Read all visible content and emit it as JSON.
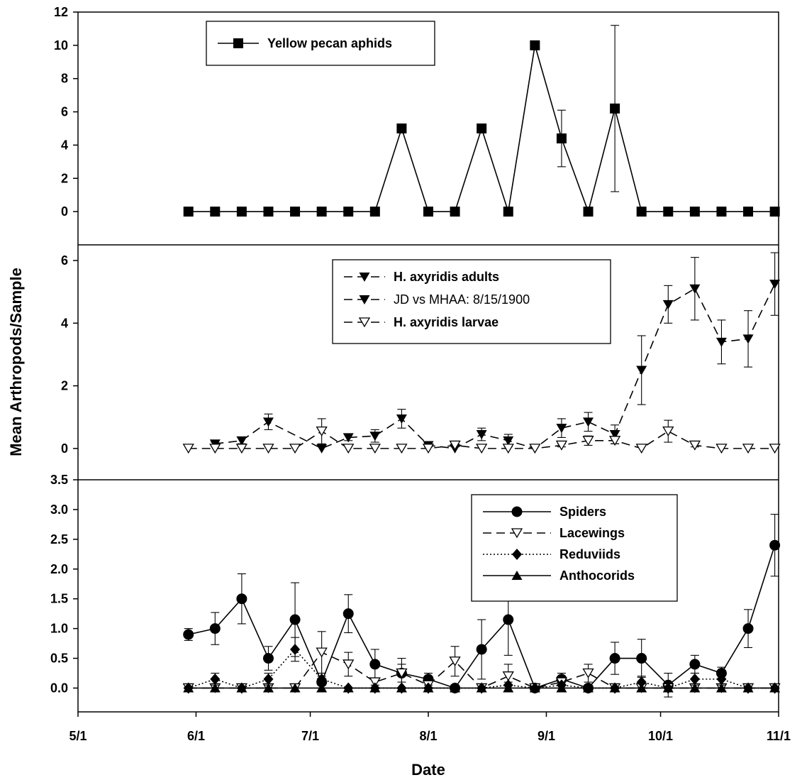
{
  "figure": {
    "ylabel": "Mean Arthropods/Sample",
    "xlabel": "Date",
    "x_ticks": [
      "5/1",
      "6/1",
      "7/1",
      "8/1",
      "9/1",
      "10/1",
      "11/1"
    ]
  },
  "chart_data": [
    {
      "type": "line",
      "panel": "top",
      "xlabel": "Date",
      "ylabel": "Mean Arthropods/Sample",
      "x_ticks": [
        "5/1",
        "6/1",
        "7/1",
        "8/1",
        "9/1",
        "10/1",
        "11/1"
      ],
      "xlim": [
        "5/1",
        "11/1"
      ],
      "ylim": [
        -2,
        12
      ],
      "y_ticks": [
        "0",
        "2",
        "4",
        "6",
        "8",
        "10",
        "12"
      ],
      "legend_position": "top-left",
      "series": [
        {
          "name": "Yellow pecan aphids",
          "marker": "square-filled",
          "line": "solid",
          "x": [
            "5/30",
            "6/6",
            "6/13",
            "6/20",
            "6/27",
            "7/4",
            "7/11",
            "7/18",
            "7/25",
            "8/1",
            "8/8",
            "8/15",
            "8/22",
            "8/29",
            "9/5",
            "9/12",
            "9/19",
            "9/26",
            "10/3",
            "10/10",
            "10/17",
            "10/24",
            "10/31"
          ],
          "y": [
            0,
            0,
            0,
            0,
            0,
            0,
            0,
            0,
            5,
            0,
            0,
            5,
            0,
            10,
            4.4,
            0,
            6.2,
            0,
            0,
            0,
            0,
            0,
            0
          ],
          "error": [
            0,
            0,
            0,
            0,
            0,
            0,
            0,
            0,
            0,
            0,
            0,
            0,
            0,
            0,
            1.7,
            0,
            5.0,
            0,
            0,
            0,
            0,
            0,
            0
          ]
        }
      ]
    },
    {
      "type": "line",
      "panel": "middle",
      "xlabel": "Date",
      "ylabel": "Mean Arthropods/Sample",
      "xlim": [
        "5/1",
        "11/1"
      ],
      "ylim": [
        -1,
        6.5
      ],
      "y_ticks": [
        "0",
        "2",
        "4",
        "6"
      ],
      "legend_position": "top-center",
      "legend_entries": [
        "H. axyridis adults",
        "JD vs MHAA: 8/15/1900",
        "H. axyridis larvae"
      ],
      "series": [
        {
          "name": "H. axyridis adults",
          "marker": "triangle-down-filled",
          "line": "dashed",
          "x": [
            "6/6",
            "6/13",
            "6/20",
            "7/4",
            "7/11",
            "7/18",
            "7/25",
            "8/1",
            "8/8",
            "8/15",
            "8/22",
            "8/29",
            "9/5",
            "9/12",
            "9/19",
            "9/26",
            "10/3",
            "10/10",
            "10/17",
            "10/24",
            "10/31"
          ],
          "y": [
            0.15,
            0.25,
            0.85,
            0,
            0.35,
            0.4,
            0.95,
            0.1,
            0,
            0.45,
            0.25,
            0,
            0.65,
            0.85,
            0.45,
            2.5,
            4.6,
            5.1,
            3.4,
            3.5,
            5.25
          ],
          "error": [
            0.05,
            0.1,
            0.25,
            0,
            0.1,
            0.2,
            0.3,
            0.05,
            0,
            0.2,
            0.2,
            0,
            0.3,
            0.3,
            0.3,
            1.1,
            0.6,
            1.0,
            0.7,
            0.9,
            1.0
          ]
        },
        {
          "name": "H. axyridis larvae",
          "marker": "triangle-down-open",
          "line": "dashed",
          "x": [
            "5/30",
            "6/6",
            "6/13",
            "6/20",
            "6/27",
            "7/4",
            "7/11",
            "7/18",
            "7/25",
            "8/1",
            "8/8",
            "8/15",
            "8/22",
            "8/29",
            "9/5",
            "9/12",
            "9/19",
            "9/26",
            "10/3",
            "10/10",
            "10/17",
            "10/24",
            "10/31"
          ],
          "y": [
            0,
            0,
            0,
            0,
            0,
            0.55,
            0,
            0,
            0,
            0,
            0.1,
            0,
            0,
            0,
            0.1,
            0.25,
            0.25,
            0,
            0.55,
            0.1,
            0,
            0,
            0
          ],
          "error": [
            0,
            0,
            0,
            0,
            0,
            0.4,
            0,
            0,
            0,
            0,
            0.05,
            0,
            0,
            0,
            0.05,
            0.15,
            0.1,
            0,
            0.35,
            0.05,
            0,
            0,
            0
          ]
        }
      ]
    },
    {
      "type": "line",
      "panel": "bottom",
      "xlabel": "Date",
      "ylabel": "Mean Arthropods/Sample",
      "xlim": [
        "5/1",
        "11/1"
      ],
      "ylim": [
        -0.4,
        3.5
      ],
      "y_ticks": [
        "0.0",
        "0.5",
        "1.0",
        "1.5",
        "2.0",
        "2.5",
        "3.0",
        "3.5"
      ],
      "legend_position": "top-right",
      "series": [
        {
          "name": "Spiders",
          "marker": "circle-filled",
          "line": "solid",
          "x": [
            "5/30",
            "6/6",
            "6/13",
            "6/20",
            "6/27",
            "7/4",
            "7/11",
            "7/18",
            "7/25",
            "8/1",
            "8/8",
            "8/15",
            "8/22",
            "8/29",
            "9/5",
            "9/12",
            "9/19",
            "9/26",
            "10/3",
            "10/10",
            "10/17",
            "10/24",
            "10/31"
          ],
          "y": [
            0.9,
            1.0,
            1.5,
            0.5,
            1.15,
            0.1,
            1.25,
            0.4,
            0.25,
            0.15,
            0,
            0.65,
            1.15,
            0,
            0.15,
            0,
            0.5,
            0.5,
            0.05,
            0.4,
            0.25,
            1.0,
            2.4
          ],
          "error": [
            0.1,
            0.27,
            0.42,
            0.2,
            0.62,
            0.1,
            0.32,
            0.25,
            0.15,
            0.1,
            0,
            0.5,
            0.6,
            0,
            0.1,
            0,
            0.27,
            0.32,
            0.2,
            0.15,
            0.1,
            0.32,
            0.52
          ]
        },
        {
          "name": "Lacewings",
          "marker": "triangle-down-open",
          "line": "dashed",
          "x": [
            "5/30",
            "6/6",
            "6/13",
            "6/20",
            "6/27",
            "7/4",
            "7/11",
            "7/18",
            "7/25",
            "8/1",
            "8/8",
            "8/15",
            "8/22",
            "8/29",
            "9/5",
            "9/12",
            "9/19",
            "9/26",
            "10/3",
            "10/10",
            "10/17",
            "10/24",
            "10/31"
          ],
          "y": [
            0,
            0,
            0,
            0,
            0,
            0.6,
            0.4,
            0.1,
            0.25,
            0.05,
            0.45,
            0,
            0.2,
            0,
            0.1,
            0.25,
            0,
            0,
            0,
            0,
            0,
            0,
            0
          ],
          "error": [
            0,
            0,
            0,
            0,
            0,
            0.35,
            0.2,
            0.05,
            0.25,
            0.05,
            0.25,
            0,
            0.2,
            0,
            0.1,
            0.15,
            0,
            0,
            0,
            0,
            0,
            0,
            0
          ]
        },
        {
          "name": "Reduviids",
          "marker": "diamond-filled",
          "line": "dotted",
          "x": [
            "5/30",
            "6/6",
            "6/13",
            "6/20",
            "6/27",
            "7/4",
            "7/11",
            "7/18",
            "7/25",
            "8/1",
            "8/8",
            "8/15",
            "8/22",
            "8/29",
            "9/5",
            "9/12",
            "9/19",
            "9/26",
            "10/3",
            "10/10",
            "10/17",
            "10/24",
            "10/31"
          ],
          "y": [
            0,
            0.15,
            0,
            0.15,
            0.65,
            0.15,
            0,
            0,
            0,
            0,
            0,
            0,
            0.05,
            0,
            0.05,
            0,
            0,
            0.1,
            0,
            0.15,
            0.15,
            0,
            0
          ],
          "error": [
            0,
            0.1,
            0,
            0.1,
            0.2,
            0.1,
            0,
            0,
            0,
            0,
            0,
            0,
            0.05,
            0,
            0.05,
            0,
            0,
            0.1,
            0,
            0.1,
            0.1,
            0,
            0
          ]
        },
        {
          "name": "Anthocorids",
          "marker": "triangle-up-filled",
          "line": "solid",
          "x": [
            "5/30",
            "6/6",
            "6/13",
            "6/20",
            "6/27",
            "7/4",
            "7/11",
            "7/18",
            "7/25",
            "8/1",
            "8/8",
            "8/15",
            "8/22",
            "8/29",
            "9/5",
            "9/12",
            "9/19",
            "9/26",
            "10/3",
            "10/10",
            "10/17",
            "10/24",
            "10/31"
          ],
          "y": [
            0,
            0,
            0,
            0,
            0,
            0,
            0,
            0,
            0,
            0,
            0,
            0,
            0,
            0,
            0,
            0,
            0,
            0,
            0,
            0,
            0,
            0,
            0
          ],
          "error": [
            0,
            0,
            0,
            0,
            0,
            0,
            0,
            0,
            0,
            0,
            0,
            0,
            0,
            0,
            0,
            0,
            0,
            0,
            0,
            0,
            0,
            0,
            0
          ]
        }
      ]
    }
  ]
}
